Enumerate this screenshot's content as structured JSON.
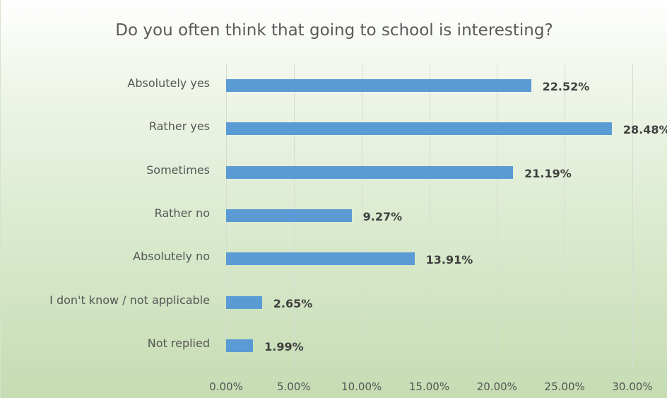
{
  "chart_data": {
    "type": "bar",
    "orientation": "horizontal",
    "title": "Do you often think that going to school is interesting?",
    "categories": [
      "Absolutely yes",
      "Rather yes",
      "Sometimes",
      "Rather no",
      "Absolutely no",
      "I don't know / not applicable",
      "Not replied"
    ],
    "values": [
      22.52,
      28.48,
      21.19,
      9.27,
      13.91,
      2.65,
      1.99
    ],
    "value_labels": [
      "22.52%",
      "28.48%",
      "21.19%",
      "9.27%",
      "13.91%",
      "2.65%",
      "1.99%"
    ],
    "xlim": [
      0,
      30
    ],
    "x_ticks": [
      0,
      5,
      10,
      15,
      20,
      25,
      30
    ],
    "x_tick_labels": [
      "0.00%",
      "5.00%",
      "10.00%",
      "15.00%",
      "20.00%",
      "25.00%",
      "30.00%"
    ],
    "grid": true,
    "legend": "none",
    "colors": {
      "bar": "#5b9bd5",
      "background": "#dcebd0"
    }
  }
}
